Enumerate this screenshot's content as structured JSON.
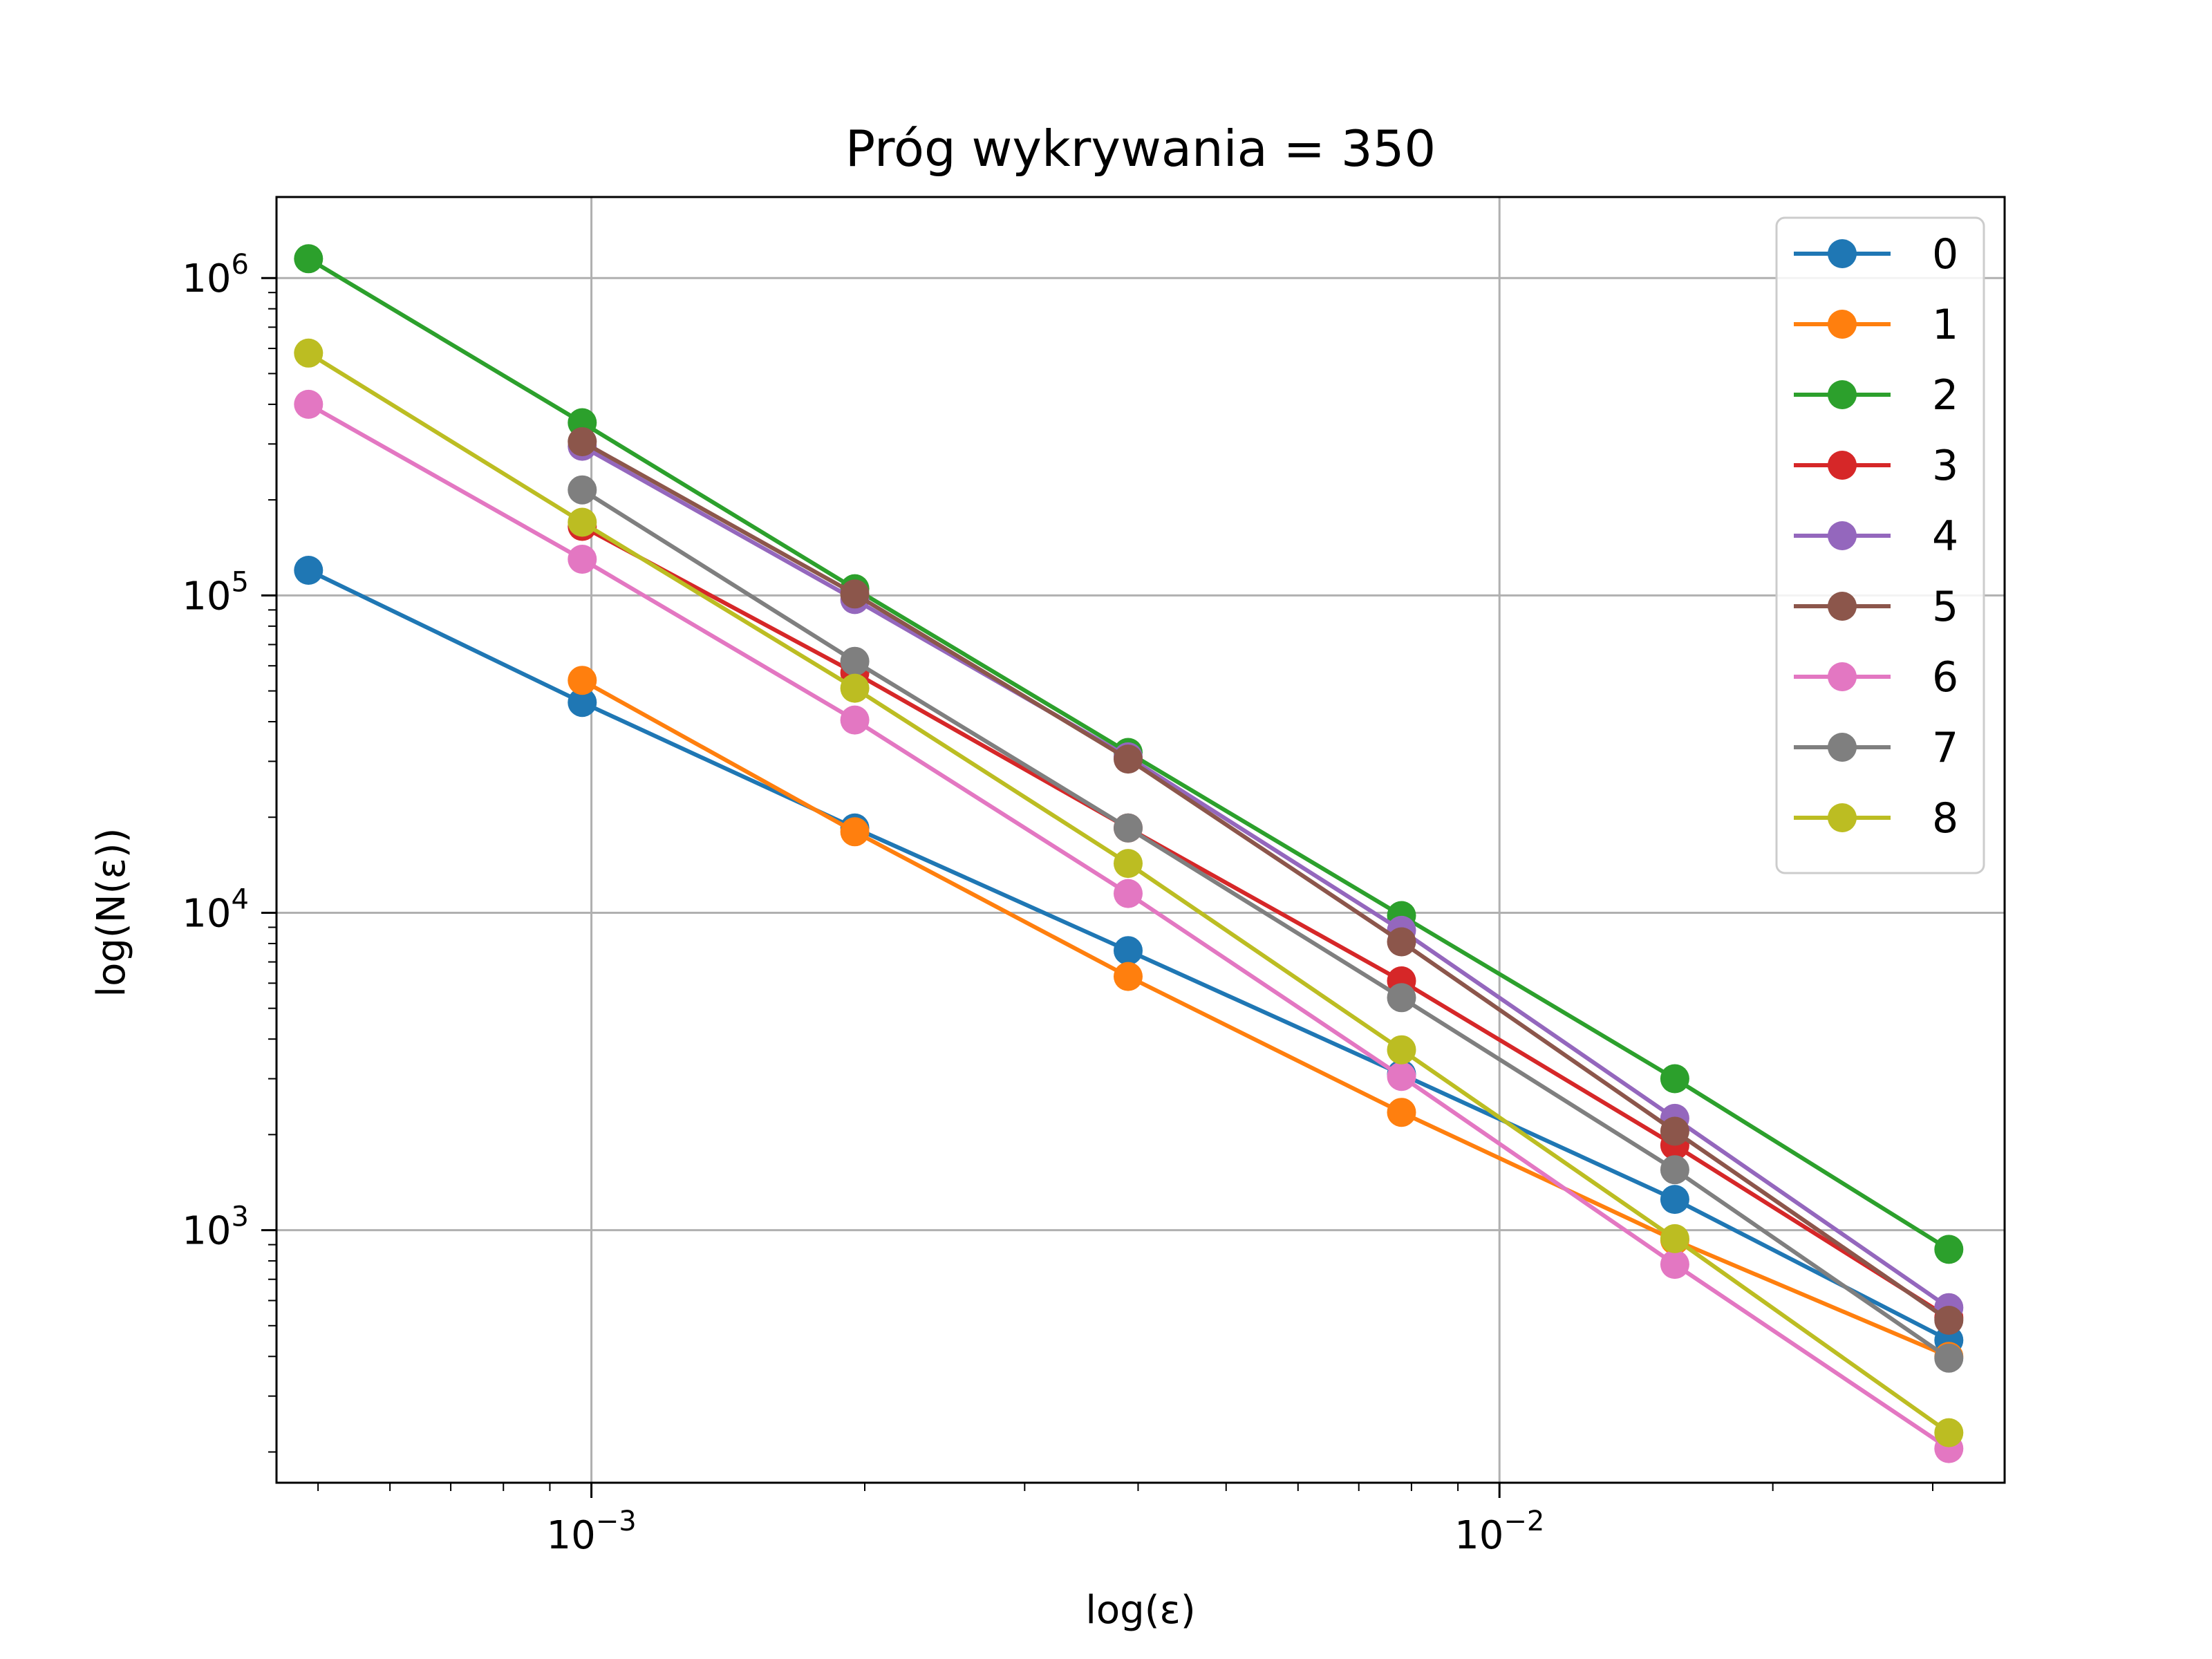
{
  "chart_data": {
    "type": "line",
    "title": "Próg wykrywania = 350",
    "xlabel": "log(ε)",
    "ylabel": "log(N(ε))",
    "xscale": "log",
    "yscale": "log",
    "xlim": [
      0.00045,
      0.036
    ],
    "ylim": [
      160,
      1800000
    ],
    "xticks": [
      {
        "value": 0.001,
        "base": "10",
        "exp": "−3"
      },
      {
        "value": 0.01,
        "base": "10",
        "exp": "−2"
      }
    ],
    "yticks": [
      {
        "value": 1000,
        "base": "10",
        "exp": "3"
      },
      {
        "value": 10000,
        "base": "10",
        "exp": "4"
      },
      {
        "value": 100000,
        "base": "10",
        "exp": "5"
      },
      {
        "value": 1000000,
        "base": "10",
        "exp": "6"
      }
    ],
    "grid": true,
    "legend_position": "top-right",
    "x": [
      0.000488,
      0.000977,
      0.00195,
      0.0039,
      0.0078,
      0.0156,
      0.03125
    ],
    "series": [
      {
        "name": "0",
        "color": "#1f77b4",
        "values": [
          120000,
          46000,
          18500,
          7600,
          3100,
          1250,
          450
        ]
      },
      {
        "name": "1",
        "color": "#ff7f0e",
        "values": [
          null,
          54000,
          18000,
          6300,
          2350,
          930,
          400
        ]
      },
      {
        "name": "2",
        "color": "#2ca02c",
        "values": [
          1150000,
          350000,
          105000,
          32000,
          9800,
          3000,
          870
        ]
      },
      {
        "name": "3",
        "color": "#d62728",
        "values": [
          null,
          165000,
          57000,
          18500,
          6100,
          1850,
          530
        ]
      },
      {
        "name": "4",
        "color": "#9467bd",
        "values": [
          null,
          295000,
          97000,
          31000,
          8800,
          2250,
          570
        ]
      },
      {
        "name": "5",
        "color": "#8c564b",
        "values": [
          null,
          305000,
          101000,
          30500,
          8100,
          2050,
          520
        ]
      },
      {
        "name": "6",
        "color": "#e377c2",
        "values": [
          400000,
          130000,
          40500,
          11500,
          3050,
          780,
          205
        ]
      },
      {
        "name": "7",
        "color": "#7f7f7f",
        "values": [
          null,
          215000,
          62000,
          18500,
          5400,
          1550,
          395
        ]
      },
      {
        "name": "8",
        "color": "#bcbd22",
        "values": [
          580000,
          170000,
          51000,
          14300,
          3700,
          940,
          230
        ]
      }
    ]
  }
}
